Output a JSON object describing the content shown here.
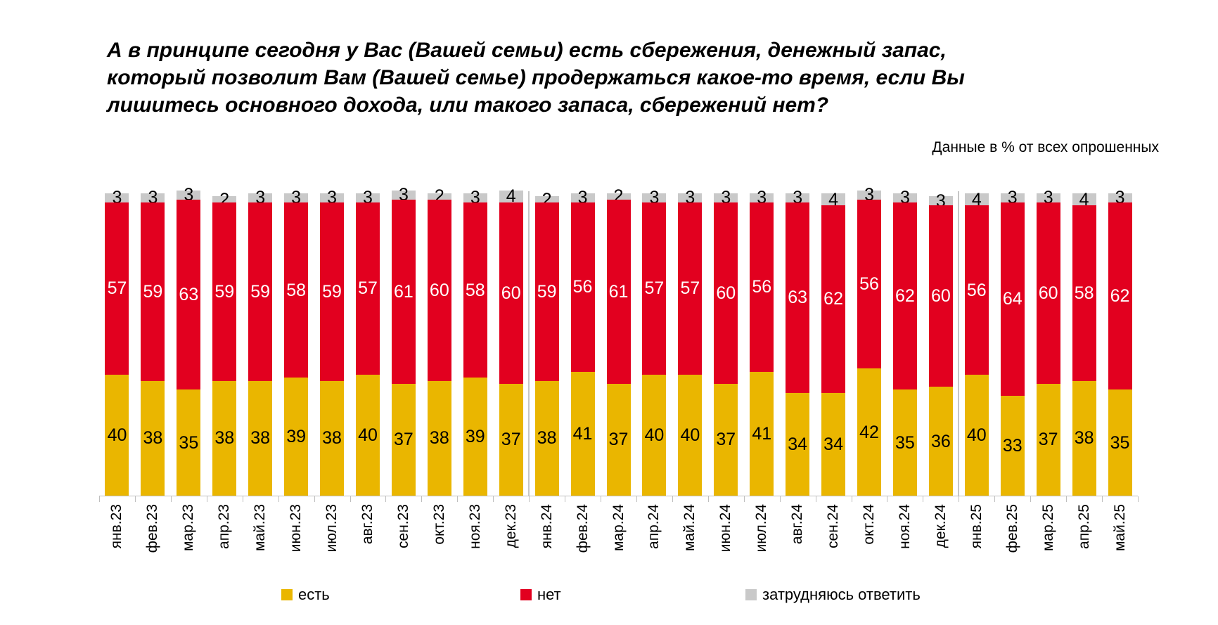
{
  "title": "А в принципе сегодня у Вас (Вашей семьи) есть сбережения, денежный запас,\nкоторый позволит Вам (Вашей семье) продержаться какое-то время, если Вы\nлишитесь основного дохода, или такого запаса, сбережений нет?",
  "subtitle": "Данные в % от всех опрошенных",
  "chart_data": {
    "type": "bar",
    "stacked": true,
    "title": "",
    "xlabel": "",
    "ylabel": "",
    "ylim": [
      0,
      100
    ],
    "grid": false,
    "legend_position": "bottom",
    "units": "%",
    "categories": [
      "янв.23",
      "фев.23",
      "мар.23",
      "апр.23",
      "май.23",
      "июн.23",
      "июл.23",
      "авг.23",
      "сен.23",
      "окт.23",
      "ноя.23",
      "дек.23",
      "янв.24",
      "фев.24",
      "мар.24",
      "апр.24",
      "май.24",
      "июн.24",
      "июл.24",
      "авг.24",
      "сен.24",
      "окт.24",
      "ноя.24",
      "дек.24",
      "янв.25",
      "фев.25",
      "мар.25",
      "апр.25",
      "май.25"
    ],
    "series": [
      {
        "name": "есть",
        "color": "#EAB600",
        "label_color": "#000000",
        "values": [
          40,
          38,
          35,
          38,
          38,
          39,
          38,
          40,
          37,
          38,
          39,
          37,
          38,
          41,
          37,
          40,
          40,
          37,
          41,
          34,
          34,
          42,
          35,
          36,
          40,
          33,
          37,
          38,
          35
        ]
      },
      {
        "name": "нет",
        "color": "#E2001F",
        "label_color": "#FFFFFF",
        "values": [
          57,
          59,
          63,
          59,
          59,
          58,
          59,
          57,
          61,
          60,
          58,
          60,
          59,
          56,
          61,
          57,
          57,
          60,
          56,
          63,
          62,
          56,
          62,
          60,
          56,
          64,
          60,
          58,
          62
        ]
      },
      {
        "name": "затрудняюсь ответить",
        "color": "#C9C9C9",
        "label_color": "#000000",
        "values": [
          3,
          3,
          3,
          2,
          3,
          3,
          3,
          3,
          3,
          2,
          3,
          4,
          2,
          3,
          2,
          3,
          3,
          3,
          3,
          3,
          4,
          3,
          3,
          3,
          4,
          3,
          3,
          4,
          3
        ]
      }
    ],
    "year_separators_after": [
      "дек.23",
      "дек.24"
    ]
  },
  "legend_x_positions": [
    400,
    740,
    1060
  ]
}
